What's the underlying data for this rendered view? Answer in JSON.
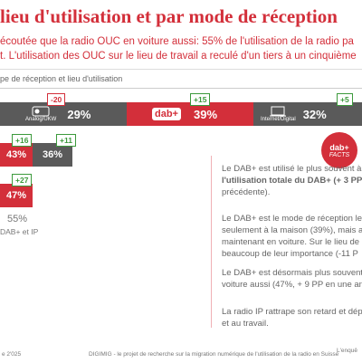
{
  "header": {
    "title": "lieu d'utilisation et par mode de réception",
    "subtitle": [
      "écoutée que la radio OUC en voiture aussi: 55% de l'utilisation de la radio pa",
      "t. L'utilisation des OUC sur le lieu de travail a reculé d'un tiers à un cinquième"
    ]
  },
  "caption": "pe de réception et lieu d'utilisation",
  "rows": [
    {
      "bars": [
        {
          "label": "Analog/UKW",
          "value": "29%",
          "change": "-20"
        },
        {
          "label": "dab+",
          "value": "39%",
          "change": "+15"
        },
        {
          "label": "Internet/Digital",
          "value": "32%",
          "change": "+5"
        }
      ]
    },
    {
      "bars": [
        {
          "value": "43%",
          "change": "+16"
        },
        {
          "value": "36%",
          "change": "+11"
        }
      ]
    },
    {
      "bars": [
        {
          "value": "47%",
          "change": "+27"
        }
      ]
    }
  ],
  "total": {
    "value": "55%",
    "label": "DAB+ et IP"
  },
  "facts_badge": {
    "logo": "dab+",
    "label": "FACTS"
  },
  "facts": [
    [
      "Le DAB+ est utilisé le plus souvent à",
      "l'utilisation totale du DAB+ (+ 3 PP pa",
      "précédente)."
    ],
    [
      "Le DAB+ est le mode de réception le",
      "seulement à la maison (39%), mais a",
      "maintenant en voiture. Sur le lieu de",
      "beaucoup de leur importance (-11 P"
    ],
    [
      "Le DAB+ est désormais plus souvent",
      "voiture aussi (47%, + 9 PP en une an"
    ],
    [
      "La radio IP rattrape son retard et dép",
      "et au travail."
    ]
  ],
  "footer": {
    "left": "e 2'025",
    "center": "DIGIMIG - le projet de recherche sur la migration numérique de l'utilisation de la radio en Suisse",
    "right": "L'enquê"
  }
}
